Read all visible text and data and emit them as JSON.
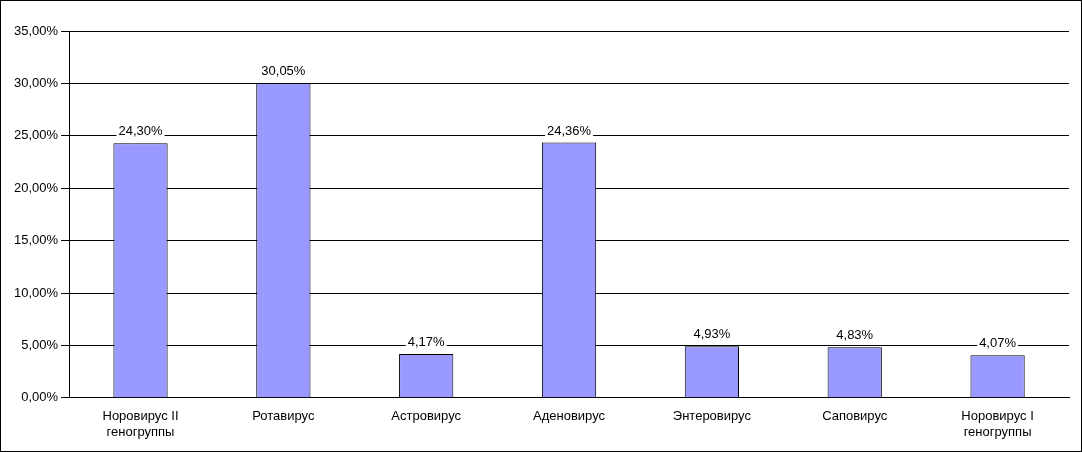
{
  "chart_data": {
    "type": "bar",
    "categories": [
      "Норовирус II\nгеногруппы",
      "Ротавирус",
      "Астровирус",
      "Аденовирус",
      "Энтеровирус",
      "Саповирус",
      "Норовирус I\nгеногруппы"
    ],
    "values": [
      24.3,
      30.05,
      4.17,
      24.36,
      4.93,
      4.83,
      4.07
    ],
    "value_labels": [
      "24,30%",
      "30,05%",
      "4,17%",
      "24,36%",
      "4,93%",
      "4,83%",
      "4,07%"
    ],
    "color": "#9999ff",
    "ylim": [
      0,
      35
    ],
    "yticks": [
      {
        "value": 0,
        "label": "0,00%"
      },
      {
        "value": 5,
        "label": "5,00%"
      },
      {
        "value": 10,
        "label": "10,00%"
      },
      {
        "value": 15,
        "label": "15,00%"
      },
      {
        "value": 20,
        "label": "20,00%"
      },
      {
        "value": 25,
        "label": "25,00%"
      },
      {
        "value": 30,
        "label": "30,00%"
      },
      {
        "value": 35,
        "label": "35,00%"
      }
    ],
    "grid": "y",
    "legend": false
  }
}
